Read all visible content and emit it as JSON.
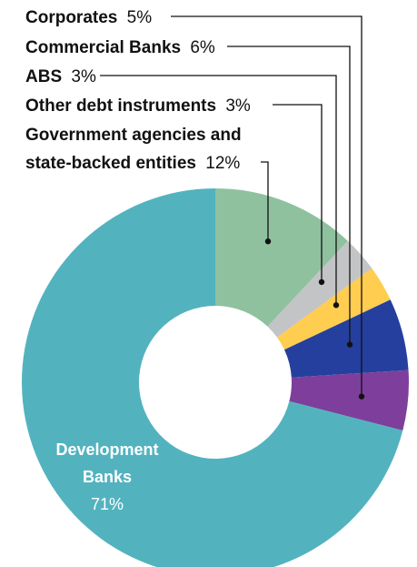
{
  "chart_data": {
    "type": "pie",
    "style": "donut",
    "categories": [
      "Government agencies and state-backed entities",
      "Other debt instruments",
      "ABS",
      "Commercial Banks",
      "Corporates",
      "Development Banks"
    ],
    "values": [
      12,
      3,
      3,
      6,
      5,
      71
    ],
    "value_labels": [
      "12%",
      "3%",
      "3%",
      "6%",
      "5%",
      "71%"
    ],
    "colors": [
      "#8fc19f",
      "#c3c4c6",
      "#ffcd4f",
      "#253f9e",
      "#7d3f9b",
      "#52b3bf"
    ],
    "label_lines": [
      {
        "name": "Corporates",
        "value": "5%"
      },
      {
        "name": "Commercial Banks",
        "value": "6%"
      },
      {
        "name": "ABS",
        "value": "3%"
      },
      {
        "name": "Other debt instruments",
        "value": "3%"
      },
      {
        "name_line1": "Government agencies and",
        "name_line2": "state-backed entities",
        "value": "12%"
      }
    ],
    "inner_label": {
      "line1": "Development",
      "line2": "Banks",
      "value": "71%"
    },
    "start_angle_deg": 0,
    "direction": "clockwise"
  }
}
